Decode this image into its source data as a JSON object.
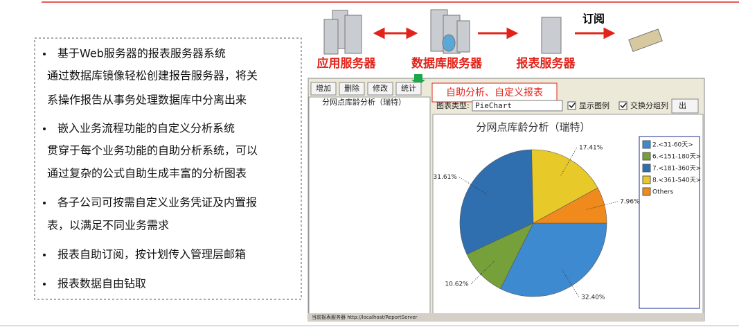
{
  "diagram": {
    "subscribe": "订阅",
    "nodes": [
      "应用服务器",
      "数据库服务器",
      "报表服务器"
    ]
  },
  "bullets": [
    [
      "基于Web服务器的报表服务器系统",
      "通过数据库镜像轻松创建报告服务器，将关",
      "系操作报告从事务处理数据库中分离出来"
    ],
    [
      "嵌入业务流程功能的自定义分析系统",
      "贯穿于每个业务功能的自助分析系统，可以",
      "通过复杂的公式自助生成丰富的分析图表"
    ],
    [
      "各子公司可按需自定义业务凭证及内置报",
      "表，以满足不同业务需求"
    ],
    [
      "报表自助订阅，按计划传入管理层邮箱"
    ],
    [
      "报表数据自由钻取"
    ]
  ],
  "window": {
    "buttons": [
      "增加",
      "删除",
      "修改",
      "统计"
    ],
    "callout": "自助分析、自定义报表",
    "tree_item": "分网点库龄分析（瑞特）",
    "chart_type_label": "图表类型:",
    "chart_type": "PieChart",
    "show_legend": "显示图例",
    "swap_group": "交换分组列",
    "export": "出",
    "status": "当前报表服务器 http://localhost/ReportServer"
  },
  "chart_data": {
    "type": "pie",
    "title": "分网点库龄分析（瑞特）",
    "categories": [
      "2.<31-60天>",
      "6.<151-180天>",
      "7.<181-360天>",
      "8.<361-540天>",
      "Others"
    ],
    "values": [
      32.4,
      10.62,
      31.61,
      17.41,
      7.96
    ],
    "value_labels": [
      "32.40%",
      "10.62%",
      "31.61%",
      "17.41%",
      "7.96%"
    ],
    "colors": [
      "#3d8ad0",
      "#76a03a",
      "#2f6fb0",
      "#e8c92a",
      "#f08a1c"
    ],
    "legend": "right"
  }
}
